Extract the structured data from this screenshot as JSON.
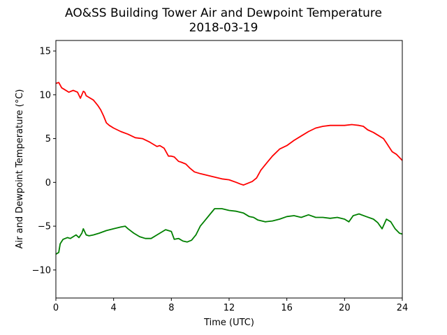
{
  "chart_data": {
    "type": "line",
    "title": "AO&SS Building Tower Air and Dewpoint Temperature",
    "subtitle": "2018-03-19",
    "xlabel": "Time (UTC)",
    "ylabel": "Air and Dewpoint Temperature (°C)",
    "xlim": [
      0,
      24
    ],
    "ylim": [
      -13.2,
      16.2
    ],
    "xticks": [
      0,
      4,
      8,
      12,
      16,
      20,
      24
    ],
    "yticks": [
      -10,
      -5,
      0,
      5,
      10,
      15
    ],
    "grid": false,
    "series": [
      {
        "color": "#ff0000",
        "x": [
          0,
          0.2,
          0.4,
          0.6,
          0.9,
          1.2,
          1.5,
          1.7,
          1.9,
          2.0,
          2.1,
          2.3,
          2.6,
          2.9,
          3.1,
          3.3,
          3.5,
          3.7,
          4.0,
          4.5,
          5.0,
          5.5,
          6.0,
          6.5,
          7.0,
          7.2,
          7.5,
          7.8,
          8.0,
          8.2,
          8.5,
          8.7,
          9.0,
          9.3,
          9.6,
          10.0,
          10.5,
          11.0,
          11.5,
          12.0,
          12.5,
          12.8,
          13.0,
          13.3,
          13.6,
          13.9,
          14.2,
          14.6,
          15.0,
          15.5,
          16.0,
          16.5,
          17.0,
          17.5,
          18.0,
          18.5,
          19.0,
          19.5,
          20.0,
          20.5,
          21.0,
          21.3,
          21.6,
          22.0,
          22.4,
          22.7,
          22.9,
          23.1,
          23.3,
          23.6,
          24.0
        ],
        "values": [
          11.3,
          11.4,
          10.8,
          10.6,
          10.3,
          10.5,
          10.3,
          9.6,
          10.4,
          10.3,
          9.9,
          9.7,
          9.4,
          8.8,
          8.3,
          7.6,
          6.8,
          6.5,
          6.2,
          5.8,
          5.5,
          5.1,
          5.0,
          4.6,
          4.1,
          4.2,
          3.9,
          3.0,
          3.0,
          2.9,
          2.4,
          2.3,
          2.1,
          1.6,
          1.2,
          1.0,
          0.8,
          0.6,
          0.4,
          0.3,
          0.0,
          -0.2,
          -0.3,
          -0.1,
          0.1,
          0.5,
          1.4,
          2.2,
          3.0,
          3.8,
          4.2,
          4.8,
          5.3,
          5.8,
          6.2,
          6.4,
          6.5,
          6.5,
          6.5,
          6.6,
          6.5,
          6.4,
          6.0,
          5.7,
          5.3,
          5.0,
          4.5,
          4.0,
          3.5,
          3.2,
          2.5
        ]
      },
      {
        "color": "#008000",
        "x": [
          0,
          0.2,
          0.3,
          0.5,
          0.8,
          1.0,
          1.2,
          1.4,
          1.6,
          1.8,
          1.9,
          2.1,
          2.3,
          2.6,
          3.0,
          3.5,
          4.0,
          4.5,
          4.8,
          5.0,
          5.4,
          5.8,
          6.2,
          6.6,
          7.0,
          7.3,
          7.6,
          8.0,
          8.2,
          8.5,
          8.8,
          9.1,
          9.4,
          9.7,
          10.0,
          10.3,
          10.7,
          11.0,
          11.5,
          12.0,
          12.5,
          13.0,
          13.4,
          13.7,
          14.0,
          14.5,
          15.0,
          15.5,
          16.0,
          16.5,
          17.0,
          17.5,
          18.0,
          18.5,
          19.0,
          19.5,
          20.0,
          20.3,
          20.6,
          21.0,
          21.5,
          22.0,
          22.3,
          22.6,
          22.9,
          23.2,
          23.5,
          23.8,
          24.0
        ],
        "values": [
          -8.2,
          -8.0,
          -7.0,
          -6.5,
          -6.3,
          -6.4,
          -6.2,
          -6.0,
          -6.3,
          -5.8,
          -5.3,
          -6.0,
          -6.1,
          -6.0,
          -5.8,
          -5.5,
          -5.3,
          -5.1,
          -5.0,
          -5.3,
          -5.8,
          -6.2,
          -6.4,
          -6.4,
          -6.0,
          -5.7,
          -5.4,
          -5.6,
          -6.5,
          -6.4,
          -6.7,
          -6.8,
          -6.6,
          -6.0,
          -5.0,
          -4.4,
          -3.6,
          -3.0,
          -3.0,
          -3.2,
          -3.3,
          -3.5,
          -3.9,
          -4.0,
          -4.3,
          -4.5,
          -4.4,
          -4.2,
          -3.9,
          -3.8,
          -4.0,
          -3.7,
          -4.0,
          -4.0,
          -4.1,
          -4.0,
          -4.2,
          -4.5,
          -3.8,
          -3.6,
          -3.9,
          -4.2,
          -4.6,
          -5.3,
          -4.2,
          -4.5,
          -5.3,
          -5.8,
          -5.9
        ]
      }
    ]
  }
}
